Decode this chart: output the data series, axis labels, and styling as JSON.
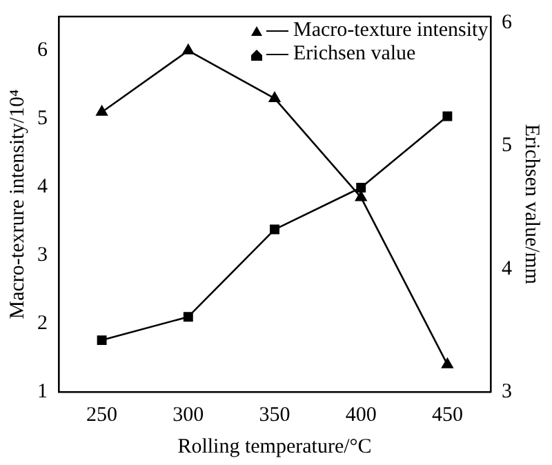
{
  "chart_data": {
    "type": "line",
    "xlabel": "Rolling temperature/°C",
    "ylabel": "Macro-texrure intensity/10⁴",
    "y2label": "Erichsen value/mm",
    "x": [
      250,
      300,
      350,
      400,
      450
    ],
    "xlim": [
      225,
      475
    ],
    "xticks": [
      250,
      300,
      350,
      400,
      450
    ],
    "ylim": [
      1,
      6.5
    ],
    "yticks": [
      1,
      2,
      3,
      4,
      5,
      6
    ],
    "y2lim": [
      3,
      6.05
    ],
    "y2ticks": [
      3,
      4,
      5,
      6
    ],
    "series": [
      {
        "name": "Macro-texture intensity",
        "color": "#000000",
        "marker": "triangle",
        "values": [
          5.1,
          6.0,
          5.3,
          3.85,
          1.4
        ]
      },
      {
        "name": "Erichsen value",
        "color": "#000000",
        "marker": "square",
        "axis": "y2",
        "values": [
          3.42,
          3.61,
          4.32,
          4.66,
          5.24
        ]
      }
    ],
    "legend": "top right",
    "grid": false,
    "line_style": "solid"
  }
}
